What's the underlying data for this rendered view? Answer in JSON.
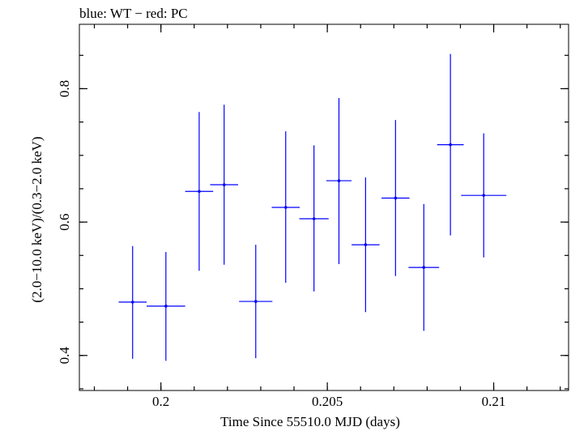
{
  "chart_data": {
    "type": "scatter",
    "title": "blue: WT − red: PC",
    "xlabel": "Time Since 55510.0 MJD (days)",
    "ylabel": "(2.0−10.0 keV)/(0.3−2.0 keV)",
    "xlim": [
      0.19755,
      0.21225
    ],
    "ylim": [
      0.3475,
      0.8965
    ],
    "x_ticks": [
      {
        "value": 0.2,
        "label": "0.2"
      },
      {
        "value": 0.205,
        "label": "0.205"
      },
      {
        "value": 0.21,
        "label": "0.21"
      }
    ],
    "y_ticks": [
      {
        "value": 0.4,
        "label": "0.4"
      },
      {
        "value": 0.6,
        "label": "0.6"
      },
      {
        "value": 0.8,
        "label": "0.8"
      }
    ],
    "x_minor_step": 0.001,
    "y_minor_step": 0.05,
    "grid": false,
    "series": [
      {
        "color": "#0000ff",
        "points": [
          {
            "x": 0.19915,
            "xerr": 0.00042,
            "y": 0.48,
            "ylo": 0.395,
            "yhi": 0.564
          },
          {
            "x": 0.20015,
            "xerr": 0.00058,
            "y": 0.474,
            "ylo": 0.392,
            "yhi": 0.555
          },
          {
            "x": 0.20115,
            "xerr": 0.00042,
            "y": 0.646,
            "ylo": 0.527,
            "yhi": 0.765
          },
          {
            "x": 0.2019,
            "xerr": 0.00042,
            "y": 0.656,
            "ylo": 0.536,
            "yhi": 0.776
          },
          {
            "x": 0.20285,
            "xerr": 0.0005,
            "y": 0.481,
            "ylo": 0.396,
            "yhi": 0.566
          },
          {
            "x": 0.20375,
            "xerr": 0.00042,
            "y": 0.622,
            "ylo": 0.509,
            "yhi": 0.736
          },
          {
            "x": 0.2046,
            "xerr": 0.00044,
            "y": 0.605,
            "ylo": 0.496,
            "yhi": 0.715
          },
          {
            "x": 0.20535,
            "xerr": 0.00038,
            "y": 0.662,
            "ylo": 0.537,
            "yhi": 0.786
          },
          {
            "x": 0.20615,
            "xerr": 0.00042,
            "y": 0.566,
            "ylo": 0.465,
            "yhi": 0.667
          },
          {
            "x": 0.20705,
            "xerr": 0.00042,
            "y": 0.636,
            "ylo": 0.519,
            "yhi": 0.753
          },
          {
            "x": 0.2079,
            "xerr": 0.00046,
            "y": 0.532,
            "ylo": 0.437,
            "yhi": 0.627
          },
          {
            "x": 0.2087,
            "xerr": 0.0004,
            "y": 0.716,
            "ylo": 0.58,
            "yhi": 0.852
          },
          {
            "x": 0.2097,
            "xerr": 0.00068,
            "y": 0.64,
            "ylo": 0.547,
            "yhi": 0.733
          }
        ]
      }
    ]
  }
}
